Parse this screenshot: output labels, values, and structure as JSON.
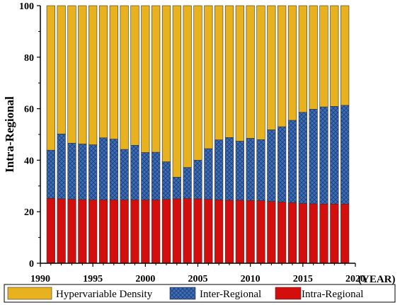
{
  "chart_data": {
    "type": "bar",
    "stacked": true,
    "ylabel": "Intra-Regional",
    "xunit_label": "(YEAR)",
    "xlim": [
      1990,
      2020
    ],
    "ylim": [
      0,
      100
    ],
    "xticks": [
      "1990",
      "1995",
      "2000",
      "2005",
      "2010",
      "2015",
      "2020"
    ],
    "yticks": [
      "0",
      "20",
      "40",
      "60",
      "80",
      "100"
    ],
    "legend_position": "bottom",
    "categories": [
      1991,
      1992,
      1993,
      1994,
      1995,
      1996,
      1997,
      1998,
      1999,
      2000,
      2001,
      2002,
      2003,
      2004,
      2005,
      2006,
      2007,
      2008,
      2009,
      2010,
      2011,
      2012,
      2013,
      2014,
      2015,
      2016,
      2017,
      2018,
      2019
    ],
    "series": [
      {
        "name": "Intra-Regional",
        "color": "#d40d0d",
        "pattern": "solid",
        "values": [
          25.2,
          25.0,
          24.8,
          24.7,
          24.6,
          24.6,
          24.6,
          24.6,
          24.6,
          24.6,
          24.6,
          24.8,
          25.0,
          25.1,
          25.0,
          24.8,
          24.6,
          24.5,
          24.5,
          24.4,
          24.3,
          24.0,
          23.8,
          23.5,
          23.2,
          23.1,
          23.0,
          23.0,
          23.0
        ]
      },
      {
        "name": "Inter-Regional",
        "color": "#3d6db5",
        "pattern": "crosshatch",
        "values": [
          18.7,
          25.2,
          21.8,
          21.6,
          21.4,
          24.1,
          23.6,
          19.6,
          21.2,
          18.4,
          18.5,
          14.6,
          8.4,
          12.1,
          15.0,
          19.7,
          23.3,
          24.3,
          22.9,
          24.1,
          23.7,
          27.8,
          29.2,
          32.0,
          35.4,
          36.7,
          37.7,
          37.9,
          38.3
        ]
      },
      {
        "name": "Hypervariable Density",
        "color": "#e8b21e",
        "pattern": "solid",
        "values": [
          56.1,
          49.8,
          53.4,
          53.7,
          54.0,
          51.3,
          51.8,
          55.8,
          54.2,
          57.0,
          56.9,
          60.6,
          66.6,
          62.8,
          60.0,
          55.5,
          52.1,
          51.2,
          52.6,
          51.5,
          52.0,
          48.2,
          47.0,
          44.5,
          41.4,
          40.2,
          39.3,
          39.1,
          38.7
        ]
      }
    ],
    "legend_order": [
      "Hypervariable Density",
      "Inter-Regional",
      "Intra-Regional"
    ]
  }
}
